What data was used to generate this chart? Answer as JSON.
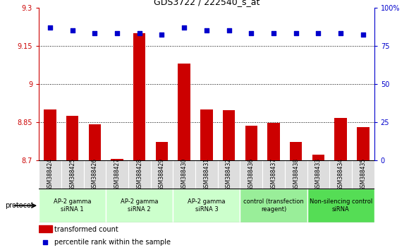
{
  "title": "GDS3722 / 222540_s_at",
  "samples": [
    "GSM388424",
    "GSM388425",
    "GSM388426",
    "GSM388427",
    "GSM388428",
    "GSM388429",
    "GSM388430",
    "GSM388431",
    "GSM388432",
    "GSM388436",
    "GSM388437",
    "GSM388438",
    "GSM388433",
    "GSM388434",
    "GSM388435"
  ],
  "transformed_count": [
    8.9,
    8.875,
    8.84,
    8.705,
    9.2,
    8.77,
    9.08,
    8.9,
    8.895,
    8.835,
    8.845,
    8.77,
    8.72,
    8.865,
    8.83
  ],
  "percentile_rank": [
    87,
    85,
    83,
    83,
    83,
    82,
    87,
    85,
    85,
    83,
    83,
    83,
    83,
    83,
    82
  ],
  "ylim_left": [
    8.7,
    9.3
  ],
  "ylim_right": [
    0,
    100
  ],
  "yticks_left": [
    8.7,
    8.85,
    9.0,
    9.15,
    9.3
  ],
  "yticks_right": [
    0,
    25,
    50,
    75,
    100
  ],
  "groups": [
    {
      "label": "AP-2 gamma\nsiRNA 1",
      "indices": [
        0,
        1,
        2
      ],
      "color": "#ccffcc"
    },
    {
      "label": "AP-2 gamma\nsiRNA 2",
      "indices": [
        3,
        4,
        5
      ],
      "color": "#ccffcc"
    },
    {
      "label": "AP-2 gamma\nsiRNA 3",
      "indices": [
        6,
        7,
        8
      ],
      "color": "#ccffcc"
    },
    {
      "label": "control (transfection\nreagent)",
      "indices": [
        9,
        10,
        11
      ],
      "color": "#99ee99"
    },
    {
      "label": "Non-silencing control\nsiRNA",
      "indices": [
        12,
        13,
        14
      ],
      "color": "#55dd55"
    }
  ],
  "bar_color": "#cc0000",
  "dot_color": "#0000cc",
  "tick_color_left": "#cc0000",
  "tick_color_right": "#0000cc",
  "protocol_label": "protocol",
  "legend_bar_label": "transformed count",
  "legend_dot_label": "percentile rank within the sample",
  "sample_bg_color": "#dddddd",
  "group_border_color": "#ffffff"
}
